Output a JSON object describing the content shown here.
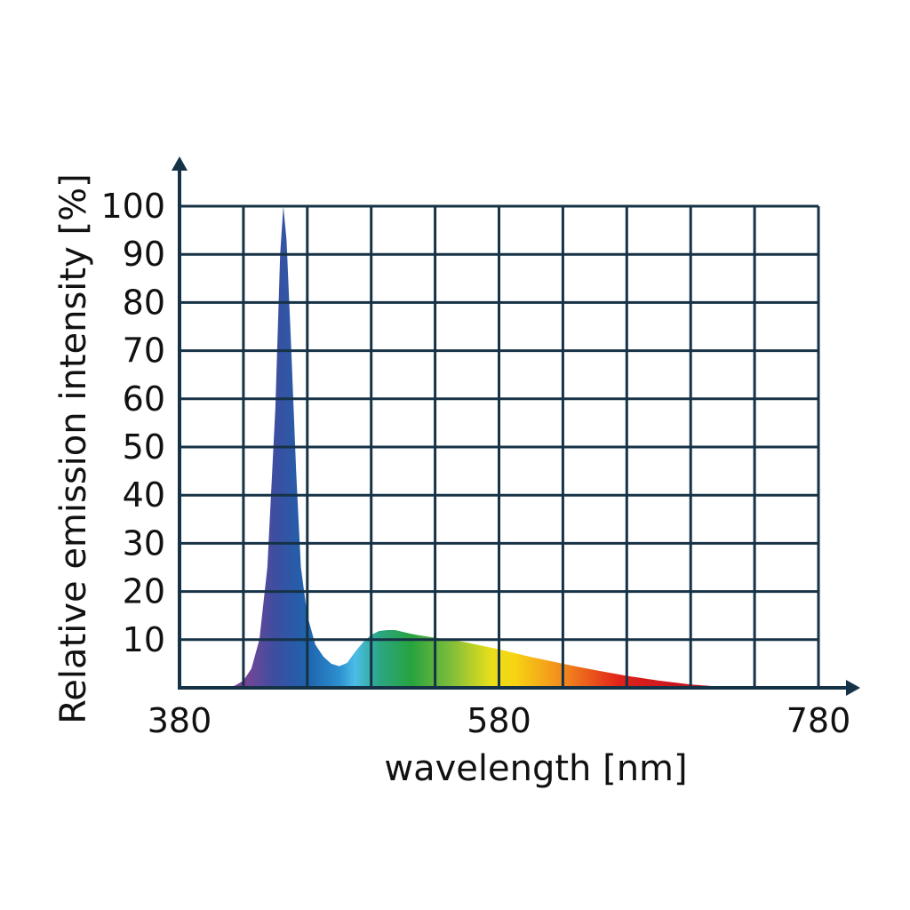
{
  "chart_data": {
    "type": "area",
    "title": "",
    "xlabel": "wavelength [nm]",
    "ylabel": "Relative emission intensity [%]",
    "xlim": [
      380,
      780
    ],
    "ylim": [
      0,
      100
    ],
    "x_ticks": [
      {
        "value": 380,
        "label": "380"
      },
      {
        "value": 580,
        "label": "580"
      },
      {
        "value": 780,
        "label": "780"
      }
    ],
    "y_ticks": [
      {
        "value": 10,
        "label": "10"
      },
      {
        "value": 20,
        "label": "20"
      },
      {
        "value": 30,
        "label": "30"
      },
      {
        "value": 40,
        "label": "40"
      },
      {
        "value": 50,
        "label": "50"
      },
      {
        "value": 60,
        "label": "60"
      },
      {
        "value": 70,
        "label": "70"
      },
      {
        "value": 80,
        "label": "80"
      },
      {
        "value": 90,
        "label": "90"
      },
      {
        "value": 100,
        "label": "100"
      }
    ],
    "x_gridlines": [
      420,
      460,
      500,
      540,
      580,
      620,
      660,
      700,
      740,
      780
    ],
    "y_gridlines": [
      10,
      20,
      30,
      40,
      50,
      60,
      70,
      80,
      90,
      100
    ],
    "grid": true,
    "legend": "none",
    "series": [
      {
        "x": [
          410,
          415,
          420,
          425,
          430,
          435,
          440,
          443,
          445,
          447,
          450,
          453,
          456,
          460,
          465,
          470,
          475,
          480,
          485,
          490,
          495,
          500,
          505,
          510,
          515,
          520,
          525,
          530,
          540,
          550,
          560,
          570,
          580,
          590,
          600,
          620,
          640,
          660,
          680,
          700,
          720,
          740,
          760,
          770,
          780
        ],
        "y": [
          0,
          0.5,
          1.5,
          4,
          10,
          25,
          58,
          90,
          100,
          93,
          70,
          45,
          25,
          15,
          9,
          6.5,
          5,
          4.5,
          5.2,
          7.5,
          9.5,
          11,
          11.8,
          12,
          12,
          11.6,
          11.2,
          10.9,
          10.4,
          10,
          9.4,
          8.7,
          8,
          7.2,
          6.4,
          5,
          3.7,
          2.5,
          1.5,
          0.7,
          0.2,
          0,
          0,
          0,
          0
        ]
      }
    ],
    "colors": {
      "grid": "#163246",
      "axis": "#163246",
      "spectrum": [
        {
          "nm": 420,
          "color": "#7a4494"
        },
        {
          "nm": 440,
          "color": "#3c4ea0"
        },
        {
          "nm": 460,
          "color": "#1e63ad"
        },
        {
          "nm": 480,
          "color": "#2c8fcf"
        },
        {
          "nm": 490,
          "color": "#4cbde8"
        },
        {
          "nm": 505,
          "color": "#2ba684"
        },
        {
          "nm": 525,
          "color": "#27a33f"
        },
        {
          "nm": 550,
          "color": "#7fbd3a"
        },
        {
          "nm": 575,
          "color": "#e8df1a"
        },
        {
          "nm": 590,
          "color": "#f7d412"
        },
        {
          "nm": 620,
          "color": "#f28a1e"
        },
        {
          "nm": 655,
          "color": "#e2231a"
        },
        {
          "nm": 690,
          "color": "#c8161e"
        },
        {
          "nm": 740,
          "color": "#a8141c"
        }
      ]
    }
  }
}
